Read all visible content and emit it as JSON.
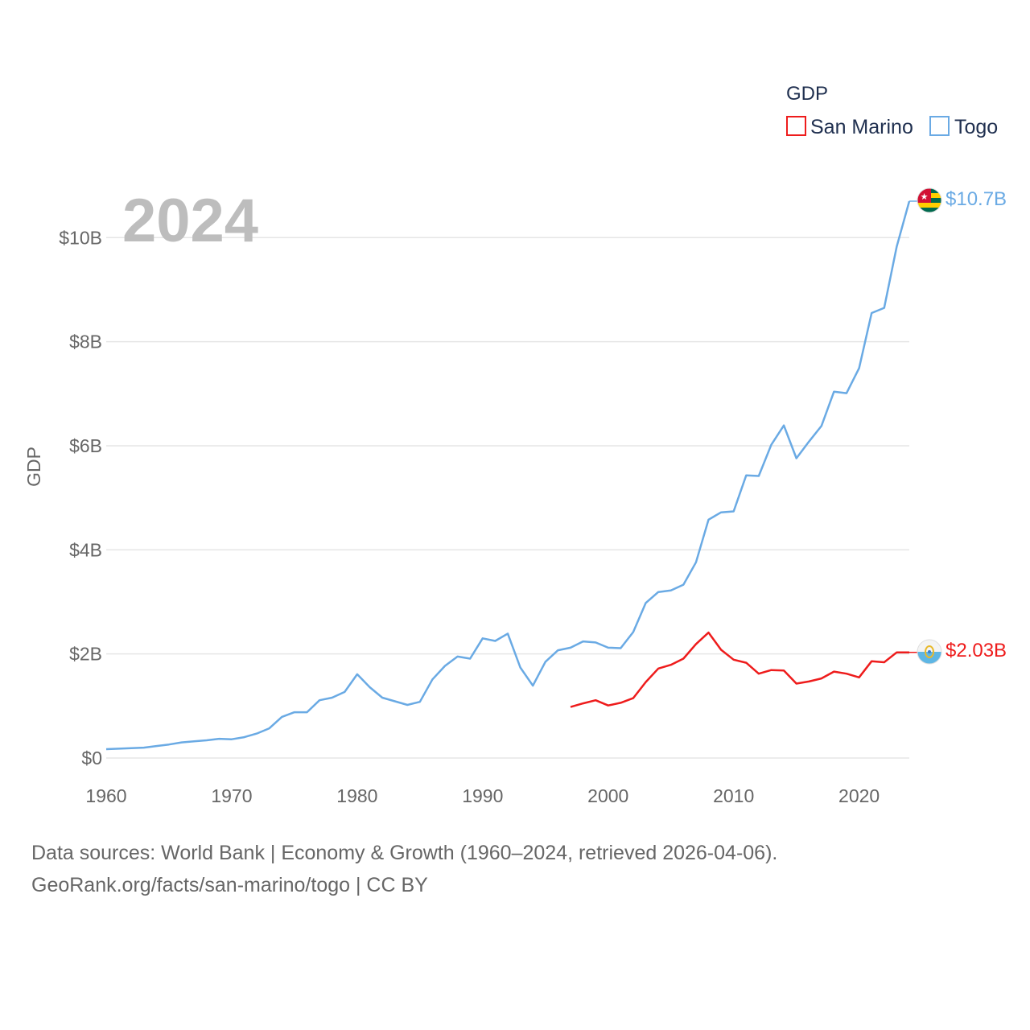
{
  "chart_data": {
    "type": "line",
    "ylabel": "GDP",
    "xlabel": "",
    "year_label": "2024",
    "legend": {
      "title": "GDP",
      "placement": "top-right"
    },
    "xlim": [
      1960,
      2024
    ],
    "ylim": [
      0,
      10.7
    ],
    "x_ticks": [
      1960,
      1970,
      1980,
      1990,
      2000,
      2010,
      2020
    ],
    "x_tick_labels": [
      "1960",
      "1970",
      "1980",
      "1990",
      "2000",
      "2010",
      "2020"
    ],
    "y_ticks": [
      0,
      2,
      4,
      6,
      8,
      10
    ],
    "y_tick_labels": [
      "$0",
      "$2B",
      "$4B",
      "$6B",
      "$8B",
      "$10B"
    ],
    "unit": "billion USD",
    "series": [
      {
        "name": "San Marino",
        "color": "#ee1c1c",
        "end_label": "$2.03B",
        "flag": "san-marino-flag-icon",
        "x": [
          1997,
          1998,
          1999,
          2000,
          2001,
          2002,
          2003,
          2004,
          2005,
          2006,
          2007,
          2008,
          2009,
          2010,
          2011,
          2012,
          2013,
          2014,
          2015,
          2016,
          2017,
          2018,
          2019,
          2020,
          2021,
          2022,
          2023,
          2024
        ],
        "values": [
          0.98,
          1.05,
          1.11,
          1.01,
          1.06,
          1.15,
          1.46,
          1.72,
          1.79,
          1.91,
          2.19,
          2.41,
          2.08,
          1.89,
          1.83,
          1.62,
          1.69,
          1.68,
          1.43,
          1.47,
          1.53,
          1.66,
          1.62,
          1.55,
          1.86,
          1.84,
          2.03,
          2.03
        ]
      },
      {
        "name": "Togo",
        "color": "#6aaae4",
        "end_label": "$10.7B",
        "flag": "togo-flag-icon",
        "x": [
          1960,
          1961,
          1962,
          1963,
          1964,
          1965,
          1966,
          1967,
          1968,
          1969,
          1970,
          1971,
          1972,
          1973,
          1974,
          1975,
          1976,
          1977,
          1978,
          1979,
          1980,
          1981,
          1982,
          1983,
          1984,
          1985,
          1986,
          1987,
          1988,
          1989,
          1990,
          1991,
          1992,
          1993,
          1994,
          1995,
          1996,
          1997,
          1998,
          1999,
          2000,
          2001,
          2002,
          2003,
          2004,
          2005,
          2006,
          2007,
          2008,
          2009,
          2010,
          2011,
          2012,
          2013,
          2014,
          2015,
          2016,
          2017,
          2018,
          2019,
          2020,
          2021,
          2022,
          2023,
          2024
        ],
        "values": [
          0.17,
          0.18,
          0.19,
          0.2,
          0.23,
          0.26,
          0.3,
          0.32,
          0.34,
          0.37,
          0.36,
          0.4,
          0.47,
          0.57,
          0.79,
          0.88,
          0.88,
          1.11,
          1.16,
          1.27,
          1.61,
          1.36,
          1.16,
          1.09,
          1.02,
          1.08,
          1.51,
          1.77,
          1.95,
          1.91,
          2.3,
          2.25,
          2.39,
          1.74,
          1.39,
          1.85,
          2.07,
          2.12,
          2.24,
          2.22,
          2.12,
          2.11,
          2.42,
          2.98,
          3.19,
          3.22,
          3.33,
          3.76,
          4.58,
          4.72,
          4.74,
          5.43,
          5.42,
          6.02,
          6.39,
          5.76,
          6.08,
          6.38,
          7.04,
          7.01,
          7.49,
          8.55,
          8.65,
          9.83,
          10.7
        ]
      }
    ]
  },
  "source": {
    "line1": "Data sources: World Bank | Economy & Growth (1960–2024, retrieved 2026-04-06).",
    "line2": "GeoRank.org/facts/san-marino/togo | CC BY"
  }
}
